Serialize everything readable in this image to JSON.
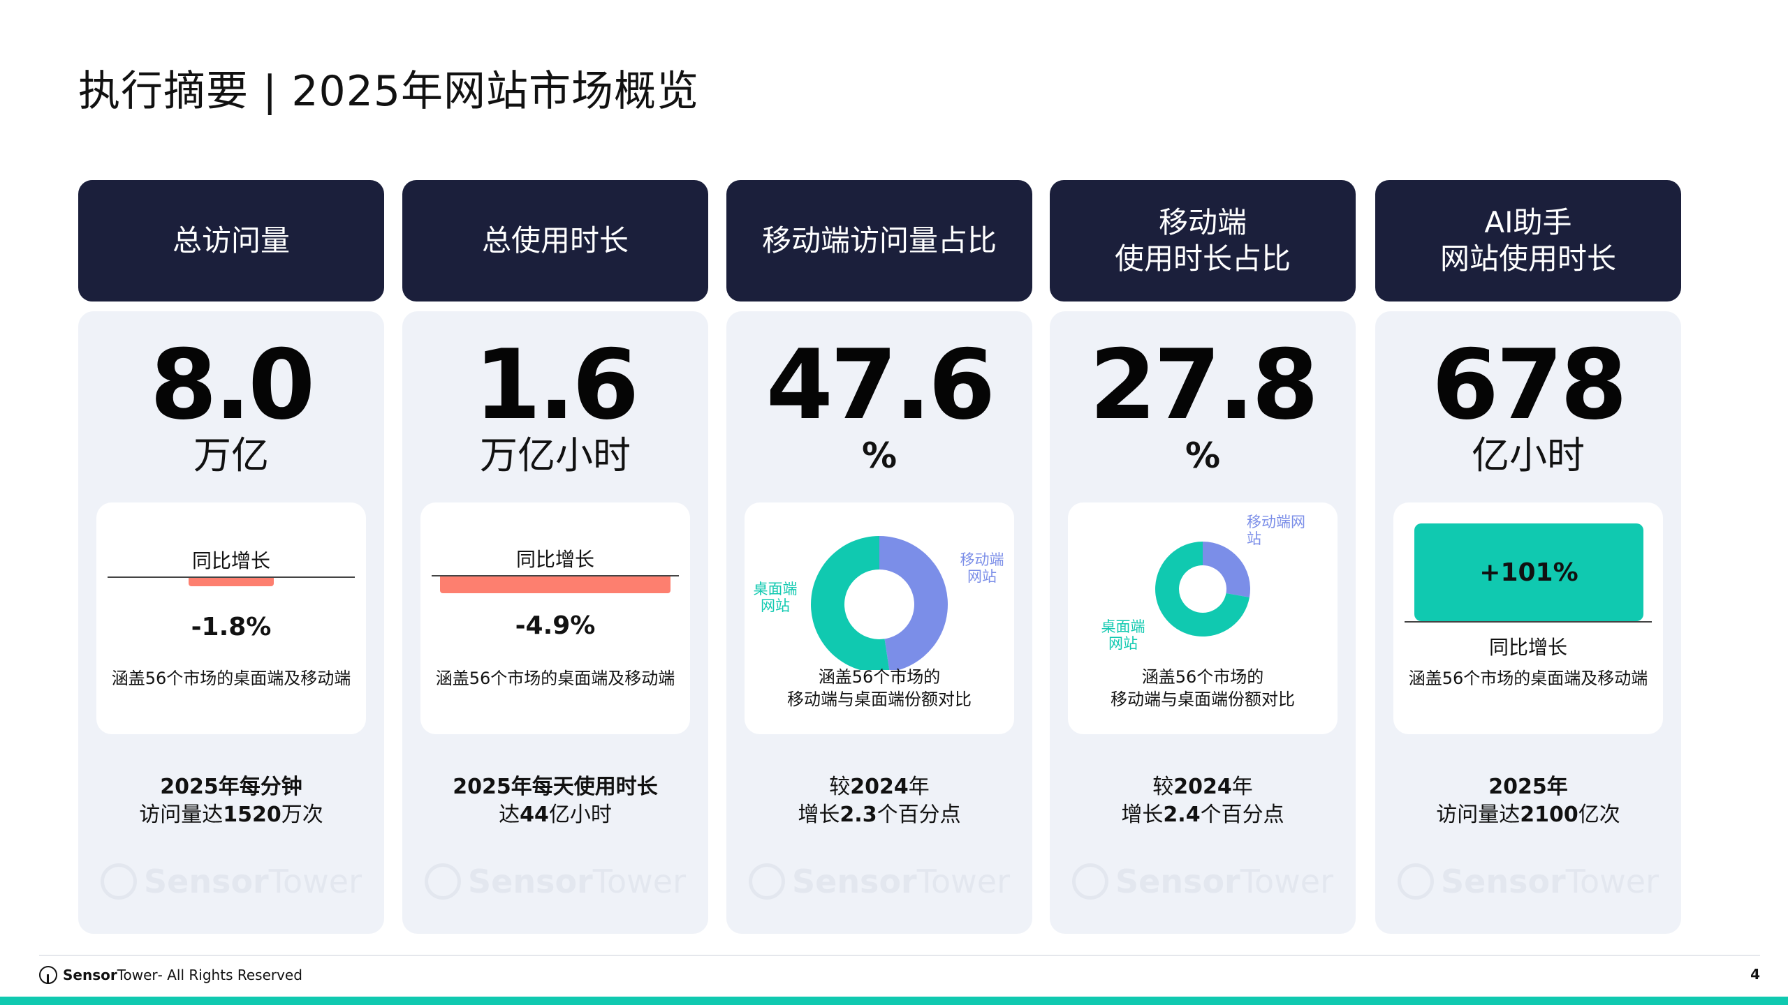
{
  "page": {
    "title": "执行摘要 | 2025年网站市场概览",
    "page_number": "4"
  },
  "colors": {
    "header_bg": "#1b1f3b",
    "card_bg": "#eff2f8",
    "negative": "#fd7f6f",
    "positive": "#10c9b0",
    "mobile": "#7b8ee8",
    "desktop": "#10c9b0"
  },
  "cards": [
    {
      "header": [
        "总访问量"
      ],
      "value": "8.0",
      "unit": "万亿",
      "change_label": "同比增长",
      "change": "-1.8%",
      "change_ratio": 0.37,
      "note": "涵盖56个市场的桌面端及移动端",
      "summary_1": "2025年每分钟",
      "summary_2a": "访问量达",
      "summary_2b": "1520",
      "summary_2c": "万次"
    },
    {
      "header": [
        "总使用时长"
      ],
      "value": "1.6",
      "unit": "万亿小时",
      "change_label": "同比增长",
      "change": "-4.9%",
      "change_ratio": 1.0,
      "note": "涵盖56个市场的桌面端及移动端",
      "summary_1": "2025年每天使用时长",
      "summary_2a": "达",
      "summary_2b": "44",
      "summary_2c": "亿小时"
    },
    {
      "header": [
        "移动端访问量占比"
      ],
      "value": "47.6",
      "unit": "%",
      "mobile_label": "移动端网站",
      "desktop_label": "桌面端网站",
      "note_1": "涵盖56个市场的",
      "note_2": "移动端与桌面端份额对比",
      "summary_1a": "较",
      "summary_1b": "2024",
      "summary_1c": "年",
      "summary_2a": "增长",
      "summary_2b": "2.3",
      "summary_2c": "个百分点"
    },
    {
      "header": [
        "移动端",
        "使用时长占比"
      ],
      "value": "27.8",
      "unit": "%",
      "mobile_label": "移动端网站",
      "desktop_label": "桌面端网站",
      "note_1": "涵盖56个市场的",
      "note_2": "移动端与桌面端份额对比",
      "summary_1a": "较",
      "summary_1b": "2024",
      "summary_1c": "年",
      "summary_2a": "增长",
      "summary_2b": "2.4",
      "summary_2c": "个百分点"
    },
    {
      "header": [
        "AI助手",
        "网站使用时长"
      ],
      "value": "678",
      "unit": "亿小时",
      "change": "+101%",
      "change_label": "同比增长",
      "note": "涵盖56个市场的桌面端及移动端",
      "summary_1": "2025年",
      "summary_2a": "访问量达",
      "summary_2b": "2100",
      "summary_2c": "亿次"
    }
  ],
  "chart_data": [
    {
      "type": "pie",
      "categories": [
        "移动端网站",
        "桌面端网站"
      ],
      "values": [
        47.6,
        52.4
      ],
      "colors": [
        "#7b8ee8",
        "#10c9b0"
      ]
    },
    {
      "type": "pie",
      "categories": [
        "移动端网站",
        "桌面端网站"
      ],
      "values": [
        27.8,
        72.2
      ],
      "colors": [
        "#7b8ee8",
        "#10c9b0"
      ]
    }
  ],
  "watermark": {
    "brand_bold": "Sensor",
    "brand_light": "Tower"
  },
  "footer": {
    "brand_bold": "Sensor",
    "brand_light": "Tower",
    "rights": " - All Rights Reserved"
  }
}
